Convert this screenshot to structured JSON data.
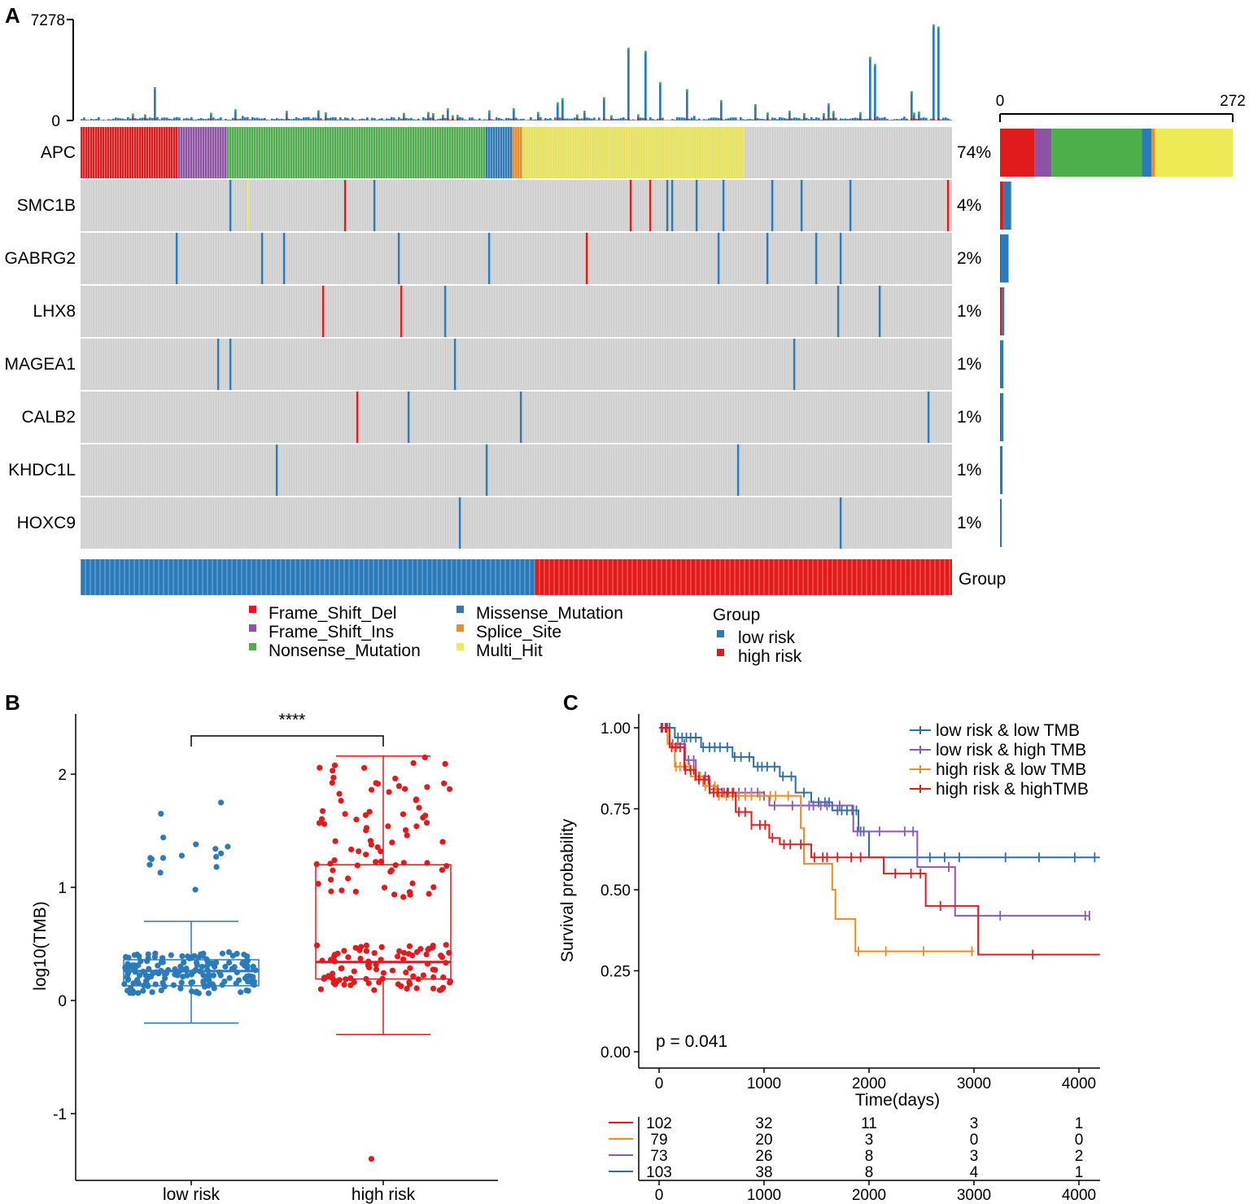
{
  "panel_labels": {
    "a": "A",
    "b": "B",
    "c": "C"
  },
  "colors": {
    "Frame_Shift_Del": "#e31a1c",
    "Frame_Shift_Ins": "#8e51a6",
    "Nonsense_Mutation": "#4daf4a",
    "Missense_Mutation": "#2b7bba",
    "Splice_Site": "#f28a1e",
    "Multi_Hit": "#eeea55",
    "none": "#cdcdcd",
    "low_risk": "#2b7bba",
    "high_risk": "#e31a1c",
    "km_low_low": "#2a6fa8",
    "km_low_high": "#8a59b5",
    "km_high_low": "#f28a1e",
    "km_high_high": "#e31a1c"
  },
  "chart_data": [
    {
      "id": "oncoplot",
      "type": "heatmap",
      "n_samples": 357,
      "top_axis": {
        "min": 0,
        "max": 7278,
        "tick_labels": [
          "7278",
          "0"
        ]
      },
      "right_axis": {
        "min": 0,
        "max": 272,
        "tick_labels": [
          "0",
          "272"
        ]
      },
      "genes": [
        {
          "name": "APC",
          "pct": "74%",
          "counts": {
            "Frame_Shift_Del": 40,
            "Frame_Shift_Ins": 20,
            "Nonsense_Mutation": 106,
            "Missense_Mutation": 11,
            "Splice_Site": 4,
            "Multi_Hit": 91
          }
        },
        {
          "name": "SMC1B",
          "pct": "4%",
          "counts": {
            "Frame_Shift_Del": 4,
            "Missense_Mutation": 9,
            "Multi_Hit": 1
          }
        },
        {
          "name": "GABRG2",
          "pct": "2%",
          "counts": {
            "Frame_Shift_Del": 1,
            "Missense_Mutation": 9
          }
        },
        {
          "name": "LHX8",
          "pct": "1%",
          "counts": {
            "Frame_Shift_Del": 2,
            "Missense_Mutation": 3
          }
        },
        {
          "name": "MAGEA1",
          "pct": "1%",
          "counts": {
            "Missense_Mutation": 4
          }
        },
        {
          "name": "CALB2",
          "pct": "1%",
          "counts": {
            "Frame_Shift_Del": 1,
            "Missense_Mutation": 3
          }
        },
        {
          "name": "KHDC1L",
          "pct": "1%",
          "counts": {
            "Missense_Mutation": 3
          }
        },
        {
          "name": "HOXC9",
          "pct": "1%",
          "counts": {
            "Missense_Mutation": 2
          }
        }
      ],
      "group_label": "Group",
      "group_split": {
        "low_risk_samples": 186,
        "high_risk_samples": 171
      },
      "legend": {
        "items": [
          "Frame_Shift_Del",
          "Frame_Shift_Ins",
          "Nonsense_Mutation",
          "Missense_Mutation",
          "Splice_Site",
          "Multi_Hit"
        ],
        "group_title": "Group",
        "group_items": [
          "low risk",
          "high risk"
        ]
      }
    },
    {
      "id": "boxplot",
      "type": "box",
      "ylabel": "log10(TMB)",
      "yticks": [
        -1,
        0,
        1,
        2
      ],
      "ylim": [
        -1.55,
        2.5
      ],
      "categories": [
        "low risk",
        "high risk"
      ],
      "significance": "****",
      "boxes": [
        {
          "name": "low risk",
          "min": -0.2,
          "q1": 0.13,
          "median": 0.26,
          "q3": 0.36,
          "max": 0.7,
          "outliers": [
            1.75,
            1.65,
            1.44,
            1.38,
            1.36,
            1.34,
            1.3,
            1.28,
            1.27,
            1.26,
            1.26,
            1.25,
            1.2,
            1.18,
            1.13,
            0.98
          ]
        },
        {
          "name": "high risk",
          "min": -0.3,
          "q1": 0.19,
          "median": 0.34,
          "q3": 1.2,
          "max": 2.16,
          "outliers": [
            -1.4
          ]
        }
      ]
    },
    {
      "id": "km",
      "type": "line",
      "xlabel": "Time(days)",
      "ylabel": "Survival probability",
      "xticks": [
        0,
        1000,
        2000,
        3000,
        4000
      ],
      "yticks": [
        "0.00",
        "0.25",
        "0.50",
        "0.75",
        "1.00"
      ],
      "xlim": [
        0,
        4200
      ],
      "ylim": [
        0,
        1
      ],
      "pvalue": "p = 0.041",
      "series": [
        {
          "name": "low risk & low TMB",
          "steps": [
            [
              0,
              1.0
            ],
            [
              150,
              0.97
            ],
            [
              400,
              0.94
            ],
            [
              700,
              0.91
            ],
            [
              900,
              0.88
            ],
            [
              1150,
              0.85
            ],
            [
              1300,
              0.8
            ],
            [
              1450,
              0.77
            ],
            [
              1650,
              0.745
            ],
            [
              1900,
              0.68
            ],
            [
              2000,
              0.6
            ],
            [
              4200,
              0.6
            ]
          ],
          "censor": [
            20,
            60,
            100,
            180,
            220,
            260,
            300,
            350,
            420,
            480,
            530,
            580,
            650,
            720,
            780,
            860,
            940,
            980,
            1030,
            1100,
            1180,
            1260,
            1380,
            1520,
            1580,
            1620,
            1700,
            1740,
            1790,
            1840,
            1880,
            1920,
            1950,
            2580,
            2720,
            2860,
            3300,
            3620,
            3960,
            4150
          ]
        },
        {
          "name": "low risk & high TMB",
          "steps": [
            [
              0,
              1.0
            ],
            [
              100,
              0.95
            ],
            [
              250,
              0.9
            ],
            [
              350,
              0.85
            ],
            [
              480,
              0.81
            ],
            [
              600,
              0.8
            ],
            [
              1000,
              0.79
            ],
            [
              1050,
              0.76
            ],
            [
              1850,
              0.68
            ],
            [
              2460,
              0.57
            ],
            [
              2820,
              0.42
            ],
            [
              4100,
              0.42
            ]
          ],
          "censor": [
            30,
            80,
            130,
            180,
            240,
            280,
            330,
            380,
            440,
            480,
            520,
            560,
            620,
            660,
            710,
            760,
            820,
            880,
            940,
            1000,
            1100,
            1270,
            1430,
            1470,
            1540,
            1600,
            1720,
            1890,
            2100,
            2340,
            2420,
            2760,
            3250,
            4060,
            4100
          ]
        },
        {
          "name": "high risk & low TMB",
          "steps": [
            [
              0,
              1.0
            ],
            [
              80,
              0.95
            ],
            [
              150,
              0.88
            ],
            [
              300,
              0.85
            ],
            [
              420,
              0.82
            ],
            [
              550,
              0.79
            ],
            [
              1350,
              0.69
            ],
            [
              1380,
              0.58
            ],
            [
              1650,
              0.5
            ],
            [
              1680,
              0.41
            ],
            [
              1870,
              0.31
            ],
            [
              3000,
              0.31
            ]
          ],
          "censor": [
            160,
            200,
            250,
            290,
            340,
            390,
            440,
            480,
            530,
            570,
            640,
            700,
            760,
            820,
            880,
            960,
            1060,
            1110,
            1230,
            1900,
            2160,
            2520,
            2980
          ]
        },
        {
          "name": "high risk & highTMB",
          "steps": [
            [
              0,
              1.0
            ],
            [
              100,
              0.94
            ],
            [
              240,
              0.87
            ],
            [
              350,
              0.84
            ],
            [
              480,
              0.8
            ],
            [
              730,
              0.74
            ],
            [
              880,
              0.7
            ],
            [
              1050,
              0.66
            ],
            [
              1150,
              0.64
            ],
            [
              1450,
              0.6
            ],
            [
              2140,
              0.55
            ],
            [
              2540,
              0.45
            ],
            [
              3040,
              0.3
            ],
            [
              4200,
              0.3
            ]
          ],
          "censor": [
            30,
            70,
            120,
            160,
            200,
            250,
            300,
            330,
            380,
            430,
            470,
            520,
            560,
            600,
            650,
            700,
            760,
            820,
            880,
            960,
            1010,
            1080,
            1190,
            1250,
            1350,
            1480,
            1560,
            1600,
            1700,
            1830,
            1920,
            2250,
            2400,
            2490,
            2680,
            3560
          ]
        }
      ],
      "legend_items": [
        "low risk & low TMB",
        "low risk & high TMB",
        "high risk & low TMB",
        "high risk & highTMB"
      ],
      "risk_table": {
        "xticks": [
          0,
          1000,
          2000,
          3000,
          4000
        ],
        "rows": [
          {
            "color_key": "km_high_high",
            "values": [
              102,
              32,
              11,
              3,
              1
            ]
          },
          {
            "color_key": "km_high_low",
            "values": [
              79,
              20,
              3,
              0,
              0
            ]
          },
          {
            "color_key": "km_low_high",
            "values": [
              73,
              26,
              8,
              3,
              2
            ]
          },
          {
            "color_key": "km_low_low",
            "values": [
              103,
              38,
              8,
              4,
              1
            ]
          }
        ]
      }
    }
  ]
}
